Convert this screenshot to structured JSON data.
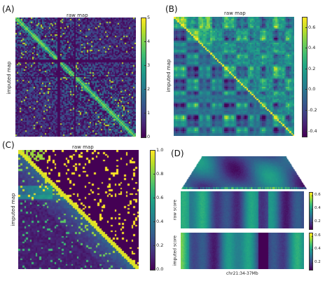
{
  "panels": {
    "A": {
      "letter": "(A)",
      "top_label": "raw map",
      "left_label": "imputed map"
    },
    "B": {
      "letter": "(B)",
      "top_label": "raw map",
      "left_label": "imputed map"
    },
    "C": {
      "letter": "(C)",
      "top_label": "raw map",
      "left_label": "imputed map"
    },
    "D": {
      "letter": "(D)",
      "row1_label": "raw score",
      "row2_label": "imputed score",
      "bottom_label": "chr21:34-37Mb"
    }
  },
  "chart_data": [
    {
      "type": "heatmap",
      "panel": "A",
      "top_label": "raw map",
      "left_label": "imputed map",
      "colormap": "viridis",
      "colorbar": {
        "ticks": [
          "0",
          "1",
          "2",
          "3",
          "4",
          "5"
        ],
        "range": [
          0,
          5
        ]
      }
    },
    {
      "type": "heatmap",
      "panel": "B",
      "top_label": "raw map",
      "left_label": "imputed map",
      "colormap": "viridis",
      "colorbar": {
        "ticks": [
          "-0.4",
          "-0.2",
          "0.0",
          "0.2",
          "0.4",
          "0.6"
        ],
        "range": [
          -0.45,
          0.7
        ]
      }
    },
    {
      "type": "heatmap",
      "panel": "C",
      "top_label": "raw map",
      "left_label": "imputed map",
      "colormap": "viridis",
      "colorbar": {
        "ticks": [
          "0.0",
          "0.2",
          "0.4",
          "0.6",
          "0.8",
          "1.0"
        ],
        "range": [
          0,
          1
        ]
      }
    },
    {
      "type": "heatmap",
      "panel": "D-triangle",
      "colormap": "viridis"
    },
    {
      "type": "heatmap",
      "panel": "D-raw",
      "ylabel": "raw score",
      "colormap": "viridis",
      "colorbar": {
        "ticks": [
          "0.2",
          "0.4",
          "0.6"
        ],
        "range": [
          0.1,
          0.65
        ]
      }
    },
    {
      "type": "heatmap",
      "panel": "D-imputed",
      "ylabel": "imputed score",
      "xlabel": "chr21:34-37Mb",
      "colormap": "viridis",
      "colorbar": {
        "ticks": [
          "0.2",
          "0.4",
          "0.6"
        ],
        "range": [
          0.1,
          0.65
        ]
      }
    }
  ]
}
